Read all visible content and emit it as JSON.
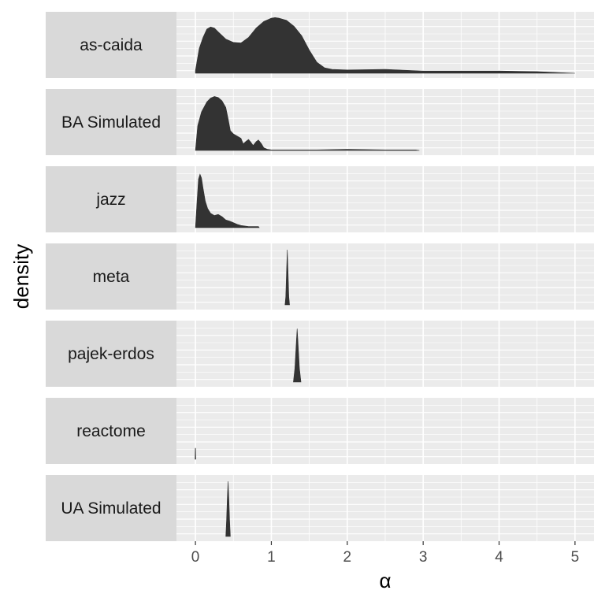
{
  "chart_data": {
    "type": "area",
    "xlabel": "α",
    "ylabel": "density",
    "xlim": [
      -0.25,
      5.25
    ],
    "x_ticks": [
      0,
      1,
      2,
      3,
      4,
      5
    ],
    "x_tick_labels": [
      "0",
      "1",
      "2",
      "3",
      "4",
      "5"
    ],
    "grid": true,
    "colors": {
      "panel_bg": "#ebebeb",
      "strip_bg": "#d9d9d9",
      "grid": "#ffffff",
      "fill": "#333333"
    },
    "facets": [
      {
        "label": "as-caida",
        "points": [
          [
            0,
            0.05
          ],
          [
            0.05,
            0.45
          ],
          [
            0.1,
            0.65
          ],
          [
            0.15,
            0.8
          ],
          [
            0.2,
            0.84
          ],
          [
            0.25,
            0.82
          ],
          [
            0.3,
            0.75
          ],
          [
            0.4,
            0.62
          ],
          [
            0.5,
            0.56
          ],
          [
            0.6,
            0.55
          ],
          [
            0.7,
            0.65
          ],
          [
            0.8,
            0.82
          ],
          [
            0.9,
            0.94
          ],
          [
            1,
            1.0
          ],
          [
            1.05,
            1.01
          ],
          [
            1.1,
            1.0
          ],
          [
            1.2,
            0.96
          ],
          [
            1.3,
            0.85
          ],
          [
            1.4,
            0.68
          ],
          [
            1.5,
            0.42
          ],
          [
            1.6,
            0.2
          ],
          [
            1.7,
            0.1
          ],
          [
            1.8,
            0.07
          ],
          [
            2,
            0.06
          ],
          [
            2.5,
            0.07
          ],
          [
            3,
            0.04
          ],
          [
            3.5,
            0.04
          ],
          [
            4,
            0.04
          ],
          [
            4.5,
            0.03
          ],
          [
            5,
            0.0
          ]
        ]
      },
      {
        "label": "BA Simulated",
        "points": [
          [
            0,
            0.0
          ],
          [
            0.03,
            0.45
          ],
          [
            0.08,
            0.7
          ],
          [
            0.15,
            0.88
          ],
          [
            0.2,
            0.95
          ],
          [
            0.25,
            0.98
          ],
          [
            0.3,
            0.96
          ],
          [
            0.35,
            0.9
          ],
          [
            0.4,
            0.78
          ],
          [
            0.43,
            0.58
          ],
          [
            0.46,
            0.36
          ],
          [
            0.5,
            0.3
          ],
          [
            0.55,
            0.26
          ],
          [
            0.6,
            0.22
          ],
          [
            0.63,
            0.12
          ],
          [
            0.67,
            0.17
          ],
          [
            0.7,
            0.2
          ],
          [
            0.73,
            0.15
          ],
          [
            0.76,
            0.09
          ],
          [
            0.8,
            0.16
          ],
          [
            0.83,
            0.19
          ],
          [
            0.87,
            0.12
          ],
          [
            0.9,
            0.05
          ],
          [
            0.95,
            0.02
          ],
          [
            1,
            0.01
          ],
          [
            1.3,
            0.01
          ],
          [
            1.6,
            0.01
          ],
          [
            2,
            0.02
          ],
          [
            2.5,
            0.01
          ],
          [
            2.9,
            0.01
          ],
          [
            2.95,
            0.0
          ]
        ]
      },
      {
        "label": "jazz",
        "points": [
          [
            0,
            0.0
          ],
          [
            0.02,
            0.45
          ],
          [
            0.04,
            0.88
          ],
          [
            0.06,
            0.97
          ],
          [
            0.08,
            0.9
          ],
          [
            0.1,
            0.72
          ],
          [
            0.13,
            0.48
          ],
          [
            0.16,
            0.35
          ],
          [
            0.2,
            0.26
          ],
          [
            0.25,
            0.22
          ],
          [
            0.3,
            0.24
          ],
          [
            0.35,
            0.2
          ],
          [
            0.4,
            0.14
          ],
          [
            0.45,
            0.12
          ],
          [
            0.5,
            0.09
          ],
          [
            0.55,
            0.06
          ],
          [
            0.6,
            0.04
          ],
          [
            0.7,
            0.02
          ],
          [
            0.83,
            0.02
          ],
          [
            0.84,
            0.0
          ]
        ]
      },
      {
        "label": "meta",
        "points": [
          [
            1.18,
            0.0
          ],
          [
            1.19,
            0.15
          ],
          [
            1.2,
            0.6
          ],
          [
            1.21,
            1.0
          ],
          [
            1.22,
            0.6
          ],
          [
            1.23,
            0.15
          ],
          [
            1.24,
            0.0
          ]
        ]
      },
      {
        "label": "pajek-erdos",
        "points": [
          [
            1.29,
            0.0
          ],
          [
            1.31,
            0.25
          ],
          [
            1.33,
            0.75
          ],
          [
            1.34,
            0.97
          ],
          [
            1.35,
            0.75
          ],
          [
            1.37,
            0.25
          ],
          [
            1.39,
            0.0
          ]
        ]
      },
      {
        "label": "reactome",
        "points": [
          [
            -0.005,
            0.0
          ],
          [
            -0.002,
            0.2
          ],
          [
            0.0,
            0.2
          ],
          [
            0.002,
            0.2
          ],
          [
            0.005,
            0.0
          ]
        ]
      },
      {
        "label": "UA Simulated",
        "points": [
          [
            0.4,
            0.0
          ],
          [
            0.41,
            0.3
          ],
          [
            0.42,
            0.7
          ],
          [
            0.43,
            1.0
          ],
          [
            0.44,
            0.7
          ],
          [
            0.45,
            0.3
          ],
          [
            0.46,
            0.0
          ]
        ]
      }
    ]
  }
}
